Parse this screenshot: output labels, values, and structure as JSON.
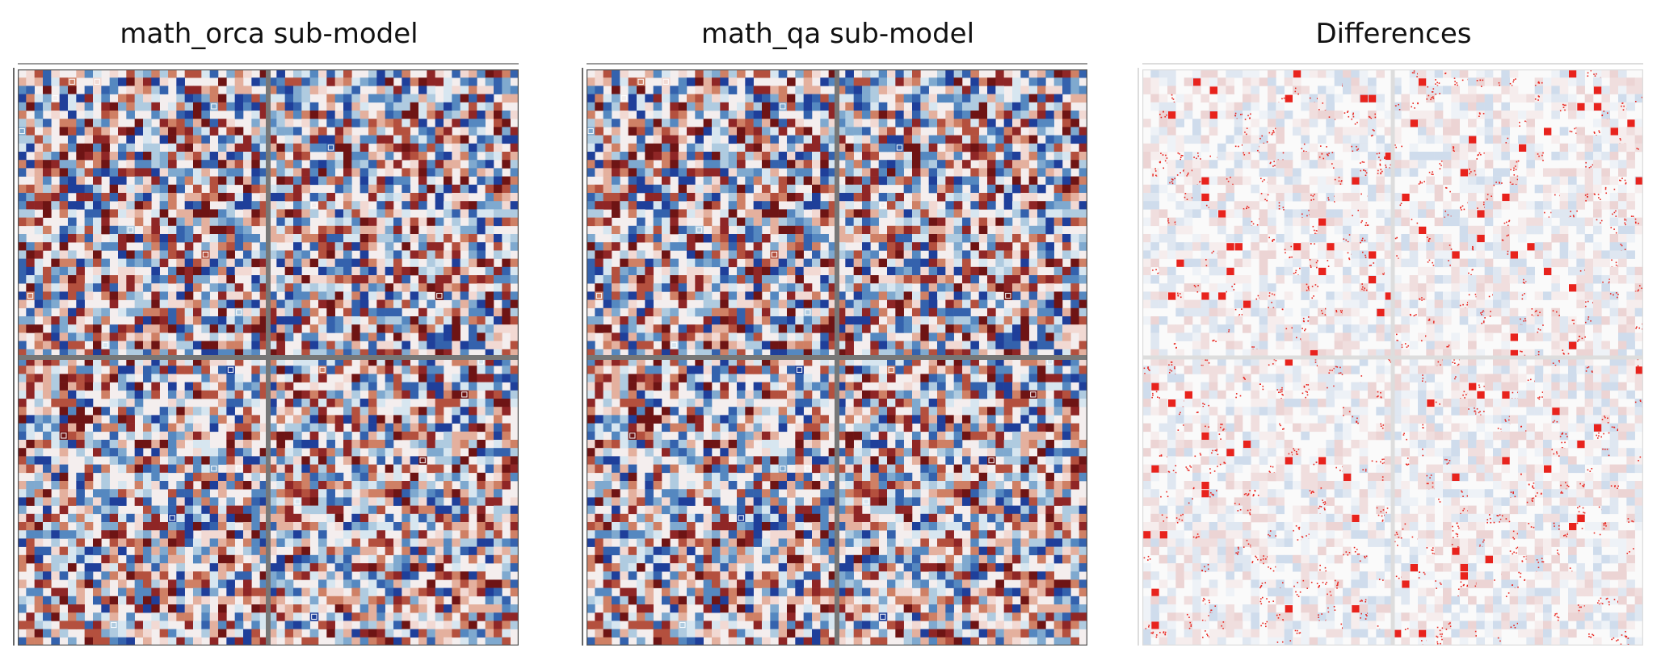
{
  "panels": [
    {
      "title": "math_orca sub-model",
      "kind": "weights",
      "seed": 11
    },
    {
      "title": "math_qa sub-model",
      "kind": "weights",
      "seed": 11
    },
    {
      "title": "Differences",
      "kind": "diff",
      "seed": 37
    }
  ],
  "chart_data": [
    {
      "type": "heatmap",
      "title": "math_orca sub-model",
      "grid": {
        "rows": 2,
        "cols": 2
      },
      "xlabel": "",
      "ylabel": "",
      "colormap": "diverging red-white-blue",
      "legend": "none",
      "colors": {
        "positive": "#7b1a1a",
        "negative": "#1f3f9a",
        "neutral": "#f4eeee",
        "separator": "#777777"
      }
    },
    {
      "type": "heatmap",
      "title": "math_qa sub-model",
      "grid": {
        "rows": 2,
        "cols": 2
      },
      "xlabel": "",
      "ylabel": "",
      "colormap": "diverging red-white-blue",
      "legend": "none",
      "colors": {
        "positive": "#7b1a1a",
        "negative": "#1f3f9a",
        "neutral": "#f4eeee",
        "separator": "#777777"
      }
    },
    {
      "type": "heatmap",
      "title": "Differences",
      "grid": {
        "rows": 2,
        "cols": 2
      },
      "xlabel": "",
      "ylabel": "",
      "colormap": "faded weights with red difference markers",
      "legend": "none",
      "colors": {
        "difference": "#e8231d",
        "faded_blue": "#cfdcec",
        "faded_red": "#ecd4d4",
        "background": "#fafafa",
        "separator": "#dddddd"
      }
    }
  ]
}
